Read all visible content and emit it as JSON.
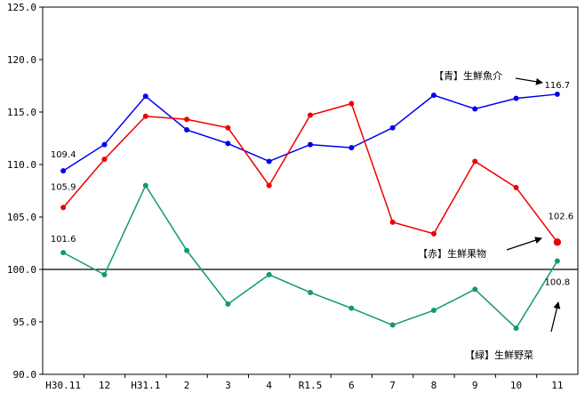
{
  "chart_data": {
    "type": "line",
    "categories": [
      "H30.11",
      "12",
      "H31.1",
      "2",
      "3",
      "4",
      "R1.5",
      "6",
      "7",
      "8",
      "9",
      "10",
      "11"
    ],
    "ylim": [
      90,
      125
    ],
    "yticks": [
      "90.0",
      "95.0",
      "100.0",
      "105.0",
      "110.0",
      "115.0",
      "120.0",
      "125.0"
    ],
    "reference_line": 100,
    "grid": false,
    "series": [
      {
        "name": "【青】生鮮魚介",
        "color": "#0000ee",
        "values": [
          109.4,
          111.9,
          116.5,
          113.3,
          112.0,
          110.3,
          111.9,
          111.6,
          113.5,
          116.6,
          115.3,
          116.3,
          116.7
        ]
      },
      {
        "name": "【赤】生鮮果物",
        "color": "#ee0000",
        "values": [
          105.9,
          110.5,
          114.6,
          114.3,
          113.5,
          108.0,
          114.7,
          115.8,
          104.5,
          103.4,
          110.3,
          107.8,
          102.6
        ]
      },
      {
        "name": "【緑】生鮮野菜",
        "color": "#119977",
        "values": [
          101.6,
          99.5,
          108.0,
          101.8,
          96.7,
          99.5,
          97.8,
          96.3,
          94.7,
          96.1,
          98.1,
          94.4,
          100.8
        ]
      }
    ],
    "value_labels": [
      {
        "text": "109.4",
        "series": 0,
        "index": 0
      },
      {
        "text": "105.9",
        "series": 1,
        "index": 0
      },
      {
        "text": "101.6",
        "series": 2,
        "index": 0
      },
      {
        "text": "116.7",
        "series": 0,
        "index": 12
      },
      {
        "text": "102.6",
        "series": 1,
        "index": 12
      },
      {
        "text": "100.8",
        "series": 2,
        "index": 12
      }
    ]
  }
}
